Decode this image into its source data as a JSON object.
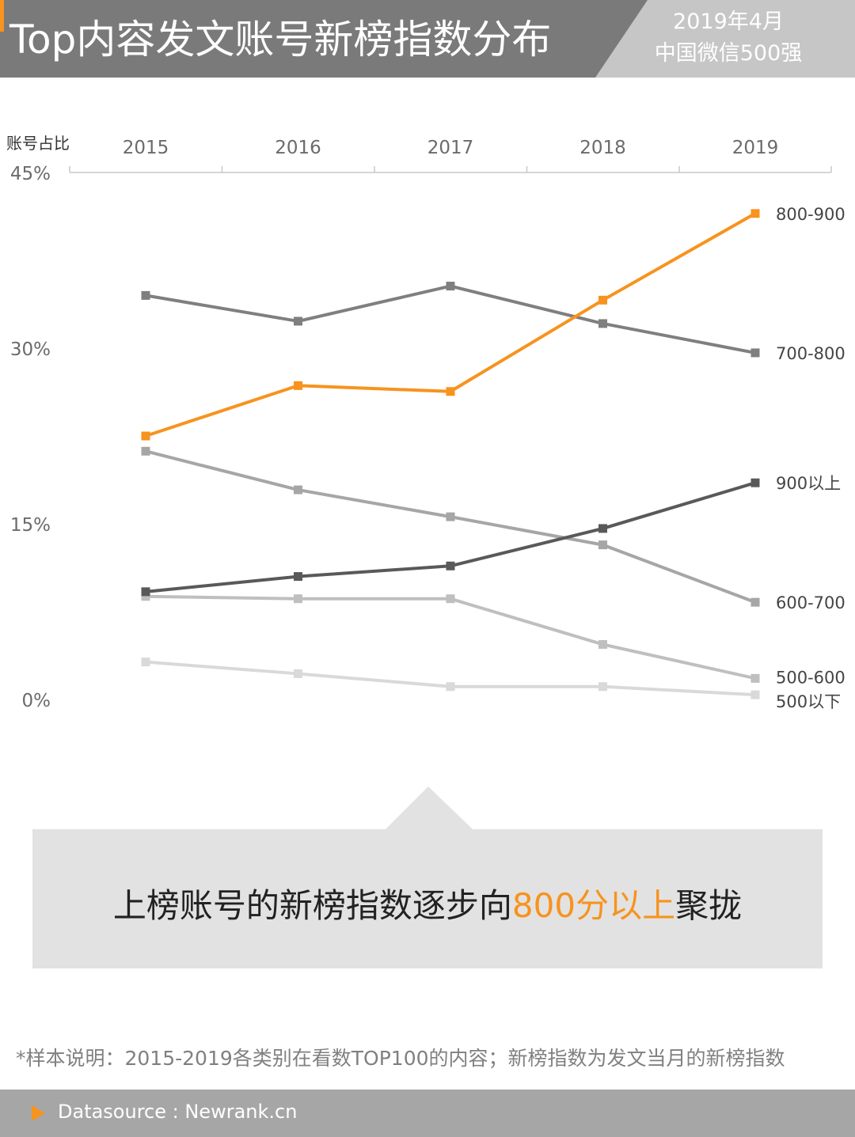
{
  "header": {
    "title": "Top内容发文账号新榜指数分布",
    "subtitle_line1": "2019年4月",
    "subtitle_line2": "中国微信500强",
    "colors": {
      "dark": "#7a7a7a",
      "light": "#c6c6c6",
      "accent": "#f7931e"
    }
  },
  "chart_data": {
    "type": "line",
    "ylabel": "账号占比",
    "x": [
      "2015",
      "2016",
      "2017",
      "2018",
      "2019"
    ],
    "yticks": [
      "45%",
      "30%",
      "15%",
      "0%"
    ],
    "ylim": [
      0,
      45
    ],
    "grid": false,
    "x_axis_position": "top",
    "series": [
      {
        "name": "800-900",
        "color": "#f7931e",
        "values": [
          22.5,
          26.8,
          26.3,
          34.1,
          41.5
        ]
      },
      {
        "name": "700-800",
        "color": "#7f7f7f",
        "values": [
          34.5,
          32.3,
          35.3,
          32.1,
          29.6
        ]
      },
      {
        "name": "900以上",
        "color": "#595959",
        "values": [
          9.2,
          10.5,
          11.4,
          14.6,
          18.5
        ]
      },
      {
        "name": "600-700",
        "color": "#a6a6a6",
        "values": [
          21.2,
          17.9,
          15.6,
          13.2,
          8.3
        ]
      },
      {
        "name": "500-600",
        "color": "#bfbfbf",
        "values": [
          8.8,
          8.6,
          8.6,
          4.7,
          1.8
        ]
      },
      {
        "name": "500以下",
        "color": "#d9d9d9",
        "values": [
          3.2,
          2.2,
          1.1,
          1.1,
          0.4
        ]
      }
    ]
  },
  "callout": {
    "text_before": "上榜账号的新榜指数逐步向",
    "highlight": "800分以上",
    "text_after": "聚拢"
  },
  "note": "*样本说明：2015-2019各类别在看数TOP100的内容；新榜指数为发文当月的新榜指数",
  "footer": {
    "source": "Datasource : Newrank.cn"
  }
}
